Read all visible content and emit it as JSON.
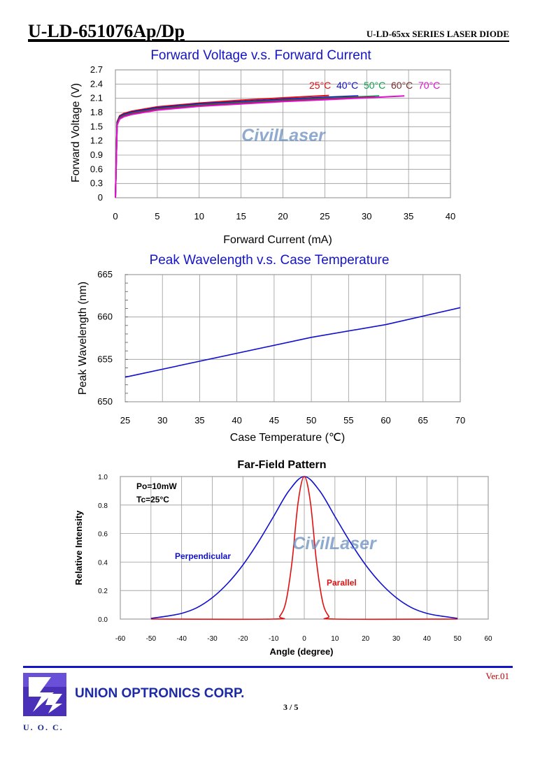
{
  "header": {
    "model": "U-LD-651076Ap/Dp",
    "series": "U-LD-65xx SERIES LASER DIODE"
  },
  "watermark": "CivilLaser",
  "charts": {
    "fv": {
      "title": "Forward Voltage v.s. Forward Current",
      "xlabel": "Forward Current (mA)",
      "ylabel": "Forward Voltage (V)"
    },
    "pw": {
      "title": "Peak Wavelength v.s. Case Temperature",
      "xlabel": "Case Temperature (℃)",
      "ylabel": "Peak Wavelength (nm)"
    },
    "ff": {
      "title": "Far-Field Pattern",
      "xlabel": "Angle (degree)",
      "ylabel": "Relative Intensity",
      "note1": "Po=10mW",
      "note2": "Tc=25°C",
      "label_perp": "Perpendicular",
      "label_par": "Parallel"
    }
  },
  "chart_data": [
    {
      "type": "line",
      "title": "Forward Voltage v.s. Forward Current",
      "xlabel": "Forward Current (mA)",
      "ylabel": "Forward Voltage (V)",
      "xlim": [
        0,
        40
      ],
      "ylim": [
        0,
        2.7
      ],
      "xticks": [
        "0",
        "5",
        "10",
        "15",
        "20",
        "25",
        "30",
        "35",
        "40"
      ],
      "yticks": [
        "0",
        "0.3",
        "0.6",
        "0.9",
        "1.2",
        "1.5",
        "1.8",
        "2.1",
        "2.4",
        "2.7"
      ],
      "grid": true,
      "legend_position": "top-right",
      "series": [
        {
          "name": "25°C",
          "color": "#e01010",
          "x": [
            0,
            0.2,
            0.5,
            1,
            2,
            5,
            10,
            15,
            20,
            25.5
          ],
          "y": [
            0,
            1.6,
            1.73,
            1.78,
            1.83,
            1.92,
            2.0,
            2.06,
            2.11,
            2.16
          ]
        },
        {
          "name": "40°C",
          "color": "#1010d0",
          "x": [
            0,
            0.2,
            0.5,
            1,
            2,
            5,
            10,
            15,
            20,
            25,
            29
          ],
          "y": [
            0,
            1.58,
            1.71,
            1.76,
            1.81,
            1.9,
            1.98,
            2.03,
            2.08,
            2.12,
            2.15
          ]
        },
        {
          "name": "50°C",
          "color": "#10a050",
          "x": [
            0,
            0.2,
            0.5,
            1,
            2,
            5,
            10,
            15,
            20,
            25,
            31.5
          ],
          "y": [
            0,
            1.56,
            1.69,
            1.74,
            1.79,
            1.88,
            1.96,
            2.01,
            2.06,
            2.1,
            2.15
          ]
        },
        {
          "name": "60°C",
          "color": "#7a3030",
          "x": [
            0,
            0.2,
            0.5,
            1,
            2,
            5,
            10,
            15,
            20,
            25,
            31
          ],
          "y": [
            0,
            1.55,
            1.68,
            1.73,
            1.78,
            1.87,
            1.95,
            2.0,
            2.05,
            2.09,
            2.13
          ]
        },
        {
          "name": "70°C",
          "color": "#e010d0",
          "x": [
            0,
            0.2,
            0.5,
            1,
            2,
            5,
            10,
            15,
            20,
            25,
            30,
            34.5
          ],
          "y": [
            0,
            1.53,
            1.66,
            1.71,
            1.76,
            1.85,
            1.93,
            1.98,
            2.03,
            2.07,
            2.11,
            2.15
          ]
        }
      ]
    },
    {
      "type": "line",
      "title": "Peak Wavelength v.s. Case Temperature",
      "xlabel": "Case Temperature (℃)",
      "ylabel": "Peak Wavelength (nm)",
      "xlim": [
        25,
        70
      ],
      "ylim": [
        650,
        665
      ],
      "xticks": [
        "25",
        "30",
        "35",
        "40",
        "45",
        "50",
        "55",
        "60",
        "65",
        "70"
      ],
      "yticks": [
        "650",
        "655",
        "660",
        "665"
      ],
      "grid": true,
      "series": [
        {
          "color": "#1010d0",
          "x": [
            25,
            50,
            60,
            70
          ],
          "y": [
            652.9,
            657.6,
            659.1,
            661.1
          ]
        }
      ]
    },
    {
      "type": "line",
      "title": "Far-Field Pattern",
      "xlabel": "Angle (degree)",
      "ylabel": "Relative Intensity",
      "xlim": [
        -60,
        60
      ],
      "ylim": [
        0,
        1.0
      ],
      "xticks": [
        "-60",
        "-50",
        "-40",
        "-30",
        "-20",
        "-10",
        "0",
        "10",
        "20",
        "30",
        "40",
        "50",
        "60"
      ],
      "yticks": [
        "0.0",
        "0.2",
        "0.4",
        "0.6",
        "0.8",
        "1.0"
      ],
      "grid": true,
      "series": [
        {
          "name": "Perpendicular",
          "color": "#1010d0",
          "x": [
            -50,
            -45,
            -40,
            -35,
            -30,
            -25,
            -20,
            -15,
            -10,
            -5,
            0,
            5,
            10,
            15,
            20,
            25,
            30,
            35,
            40,
            45,
            50
          ],
          "y": [
            0.005,
            0.02,
            0.04,
            0.08,
            0.15,
            0.25,
            0.38,
            0.54,
            0.72,
            0.9,
            1.0,
            0.9,
            0.72,
            0.54,
            0.38,
            0.25,
            0.15,
            0.08,
            0.04,
            0.02,
            0.005
          ]
        },
        {
          "name": "Parallel",
          "color": "#e01010",
          "x": [
            -50,
            -10,
            -8,
            -6,
            -4,
            -2,
            0,
            2,
            4,
            6,
            8,
            10,
            50
          ],
          "y": [
            0.0,
            0.0,
            0.02,
            0.12,
            0.4,
            0.82,
            1.0,
            0.82,
            0.4,
            0.12,
            0.02,
            0.0,
            0.0
          ]
        }
      ]
    }
  ],
  "footer": {
    "company": "UNION OPTRONICS CORP.",
    "logo_text": "U. O. C.",
    "page": "3 / 5",
    "version": "Ver.01"
  },
  "colors": {
    "title_blue": "#1414c8",
    "grid": "#9a9a9a"
  }
}
